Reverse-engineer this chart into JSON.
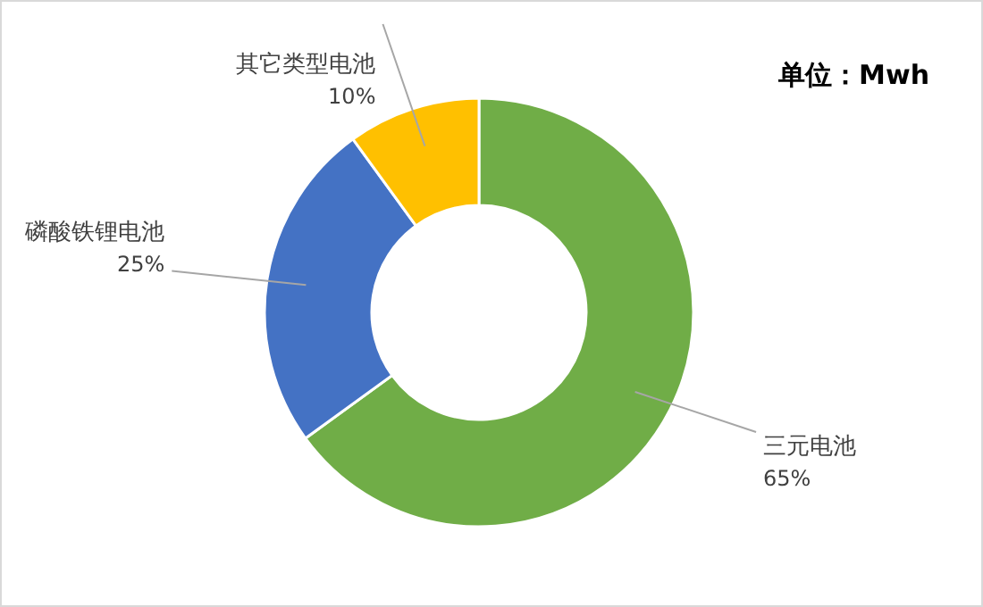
{
  "chart_data": {
    "type": "donut",
    "categories": [
      "三元电池",
      "磷酸铁锂电池",
      "其它类型电池"
    ],
    "values": [
      65,
      25,
      10
    ],
    "colors": [
      "#70ad47",
      "#4472c4",
      "#ffc000"
    ],
    "value_labels": [
      "65%",
      "25%",
      "10%"
    ],
    "annotations": [
      "单位：Mwh"
    ]
  }
}
